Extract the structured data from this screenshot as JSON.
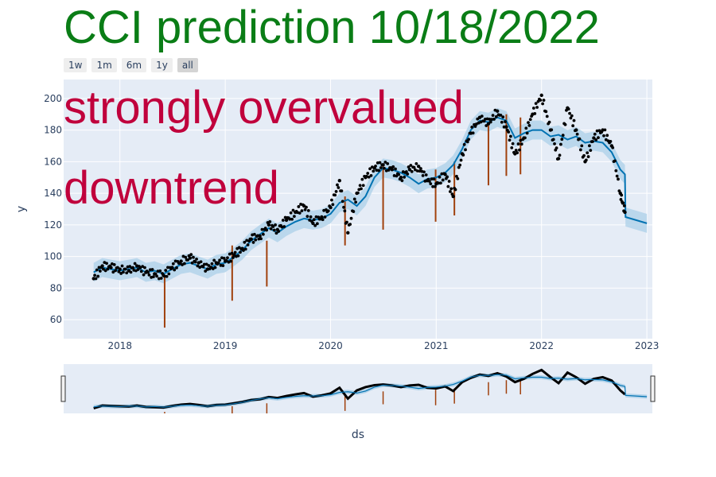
{
  "title": "CCI prediction 10/18/2022",
  "range_buttons": [
    "1w",
    "1m",
    "6m",
    "1y",
    "all"
  ],
  "active_button": "all",
  "annotations": [
    "strongly overvalued",
    "downtrend"
  ],
  "colors": {
    "title": "#0a7d16",
    "annotation": "#c0003c",
    "plot_bg": "#e5ecf6",
    "forecast_line": "#0072b2",
    "uncertainty_band": "#b3d3ea",
    "actual_points": "#000000",
    "changepoints": "#a0410d"
  },
  "chart_data": {
    "type": "line",
    "xlabel": "ds",
    "ylabel": "y",
    "x_range": [
      "2017-06-20",
      "2023-01-20"
    ],
    "y_range": [
      48,
      212
    ],
    "x_ticks": [
      "2018",
      "2019",
      "2020",
      "2021",
      "2022",
      "2023"
    ],
    "y_ticks": [
      60,
      80,
      100,
      120,
      140,
      160,
      180,
      200
    ],
    "grid": true,
    "series": [
      {
        "kind": "forecast",
        "points": [
          [
            "2017-10-02",
            90
          ],
          [
            "2017-11-01",
            93
          ],
          [
            "2017-12-01",
            92
          ],
          [
            "2018-01-01",
            91
          ],
          [
            "2018-02-01",
            92
          ],
          [
            "2018-03-01",
            93
          ],
          [
            "2018-04-01",
            90
          ],
          [
            "2018-05-01",
            91
          ],
          [
            "2018-06-01",
            89
          ],
          [
            "2018-07-01",
            92
          ],
          [
            "2018-08-01",
            95
          ],
          [
            "2018-09-01",
            96
          ],
          [
            "2018-10-01",
            94
          ],
          [
            "2018-11-01",
            92
          ],
          [
            "2018-12-01",
            95
          ],
          [
            "2019-01-01",
            96
          ],
          [
            "2019-02-01",
            100
          ],
          [
            "2019-03-01",
            104
          ],
          [
            "2019-04-01",
            110
          ],
          [
            "2019-05-01",
            114
          ],
          [
            "2019-06-01",
            118
          ],
          [
            "2019-07-01",
            115
          ],
          [
            "2019-08-01",
            119
          ],
          [
            "2019-09-01",
            122
          ],
          [
            "2019-10-01",
            124
          ],
          [
            "2019-11-01",
            123
          ],
          [
            "2019-12-01",
            124
          ],
          [
            "2020-01-01",
            127
          ],
          [
            "2020-02-01",
            134
          ],
          [
            "2020-03-01",
            136
          ],
          [
            "2020-04-01",
            132
          ],
          [
            "2020-05-01",
            138
          ],
          [
            "2020-06-01",
            150
          ],
          [
            "2020-07-01",
            156
          ],
          [
            "2020-08-01",
            155
          ],
          [
            "2020-09-01",
            153
          ],
          [
            "2020-10-01",
            150
          ],
          [
            "2020-11-01",
            146
          ],
          [
            "2020-12-01",
            149
          ],
          [
            "2021-01-01",
            150
          ],
          [
            "2021-02-01",
            153
          ],
          [
            "2021-03-01",
            158
          ],
          [
            "2021-04-01",
            168
          ],
          [
            "2021-05-01",
            180
          ],
          [
            "2021-06-01",
            186
          ],
          [
            "2021-07-01",
            185
          ],
          [
            "2021-08-01",
            188
          ],
          [
            "2021-09-01",
            186
          ],
          [
            "2021-10-01",
            175
          ],
          [
            "2021-11-01",
            178
          ],
          [
            "2021-12-01",
            180
          ],
          [
            "2022-01-01",
            180
          ],
          [
            "2022-02-01",
            176
          ],
          [
            "2022-03-01",
            177
          ],
          [
            "2022-04-01",
            174
          ],
          [
            "2022-05-01",
            176
          ],
          [
            "2022-06-01",
            172
          ],
          [
            "2022-07-01",
            173
          ],
          [
            "2022-08-01",
            172
          ],
          [
            "2022-09-01",
            166
          ],
          [
            "2022-10-01",
            155
          ],
          [
            "2022-10-17",
            152
          ],
          [
            "2022-10-19",
            125
          ],
          [
            "2023-01-01",
            121
          ]
        ],
        "band_half_width": 6
      },
      {
        "kind": "actual",
        "points": [
          [
            "2017-10-02",
            86
          ],
          [
            "2017-11-01",
            94
          ],
          [
            "2017-12-01",
            93
          ],
          [
            "2018-01-01",
            92
          ],
          [
            "2018-02-01",
            91
          ],
          [
            "2018-03-01",
            94
          ],
          [
            "2018-04-01",
            90
          ],
          [
            "2018-05-01",
            89
          ],
          [
            "2018-06-01",
            88
          ],
          [
            "2018-07-01",
            93
          ],
          [
            "2018-08-01",
            97
          ],
          [
            "2018-09-01",
            99
          ],
          [
            "2018-10-01",
            96
          ],
          [
            "2018-11-01",
            92
          ],
          [
            "2018-12-01",
            96
          ],
          [
            "2019-01-01",
            97
          ],
          [
            "2019-02-01",
            101
          ],
          [
            "2019-03-01",
            105
          ],
          [
            "2019-04-01",
            111
          ],
          [
            "2019-05-01",
            113
          ],
          [
            "2019-06-01",
            120
          ],
          [
            "2019-07-01",
            117
          ],
          [
            "2019-08-01",
            123
          ],
          [
            "2019-09-01",
            128
          ],
          [
            "2019-10-01",
            132
          ],
          [
            "2019-11-01",
            121
          ],
          [
            "2019-12-01",
            125
          ],
          [
            "2020-01-01",
            131
          ],
          [
            "2020-02-01",
            148
          ],
          [
            "2020-03-01",
            115
          ],
          [
            "2020-04-01",
            140
          ],
          [
            "2020-05-01",
            150
          ],
          [
            "2020-06-01",
            156
          ],
          [
            "2020-07-01",
            158
          ],
          [
            "2020-08-01",
            155
          ],
          [
            "2020-09-01",
            150
          ],
          [
            "2020-10-01",
            155
          ],
          [
            "2020-11-01",
            157
          ],
          [
            "2020-12-01",
            148
          ],
          [
            "2021-01-01",
            146
          ],
          [
            "2021-02-01",
            152
          ],
          [
            "2021-03-01",
            138
          ],
          [
            "2021-04-01",
            165
          ],
          [
            "2021-05-01",
            178
          ],
          [
            "2021-06-01",
            188
          ],
          [
            "2021-07-01",
            184
          ],
          [
            "2021-08-01",
            192
          ],
          [
            "2021-09-01",
            182
          ],
          [
            "2021-10-01",
            165
          ],
          [
            "2021-11-01",
            175
          ],
          [
            "2021-12-01",
            190
          ],
          [
            "2022-01-01",
            202
          ],
          [
            "2022-02-01",
            180
          ],
          [
            "2022-03-01",
            162
          ],
          [
            "2022-04-01",
            194
          ],
          [
            "2022-05-01",
            180
          ],
          [
            "2022-06-01",
            160
          ],
          [
            "2022-07-01",
            175
          ],
          [
            "2022-08-01",
            180
          ],
          [
            "2022-09-01",
            170
          ],
          [
            "2022-10-01",
            140
          ],
          [
            "2022-10-17",
            128
          ]
        ]
      },
      {
        "kind": "changepoints",
        "segments": [
          [
            "2018-06-05",
            55,
            88
          ],
          [
            "2019-01-25",
            72,
            107
          ],
          [
            "2019-05-25",
            81,
            110
          ],
          [
            "2020-02-20",
            107,
            138
          ],
          [
            "2020-07-01",
            117,
            158
          ],
          [
            "2020-12-30",
            122,
            155
          ],
          [
            "2021-03-05",
            126,
            160
          ],
          [
            "2021-07-01",
            145,
            185
          ],
          [
            "2021-09-01",
            151,
            190
          ],
          [
            "2021-10-20",
            152,
            188
          ]
        ]
      }
    ]
  }
}
